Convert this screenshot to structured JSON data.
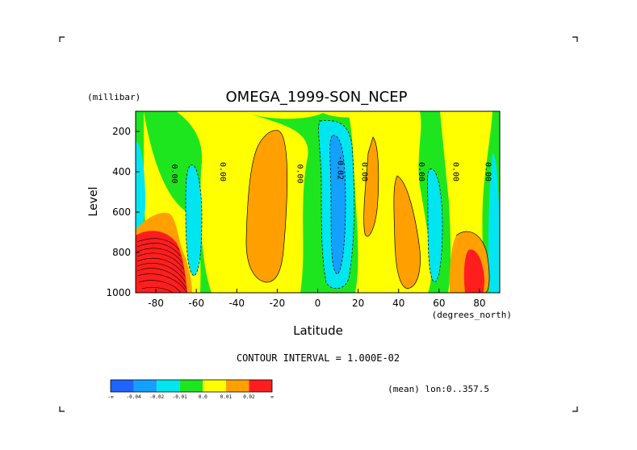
{
  "chart_data": {
    "type": "heatmap",
    "title": "OMEGA_1999-SON_NCEP",
    "xlabel": "Latitude",
    "x_units": "(degrees_north)",
    "ylabel": "Level",
    "y_units": "(millibar)",
    "xlim": [
      -90,
      90
    ],
    "ylim": [
      1000,
      100
    ],
    "x_ticks": [
      "-80",
      "-60",
      "-40",
      "-20",
      "0",
      "20",
      "40",
      "60",
      "80"
    ],
    "y_ticks": [
      "200",
      "400",
      "600",
      "800",
      "1000"
    ],
    "contour_interval_text": "CONTOUR INTERVAL = 1.000E-02",
    "footnote": "(mean) lon:0..357.5",
    "contour_labels": [
      {
        "text": "0.00",
        "x": -72,
        "y": 410
      },
      {
        "text": "0.00",
        "x": -48,
        "y": 400
      },
      {
        "text": "0.00",
        "x": -10,
        "y": 410
      },
      {
        "text": "-0.02",
        "x": 10,
        "y": 380
      },
      {
        "text": "0.00",
        "x": 22,
        "y": 400
      },
      {
        "text": "0.00",
        "x": 50,
        "y": 400
      },
      {
        "text": "0.00",
        "x": 67,
        "y": 400
      },
      {
        "text": "0.00",
        "x": 83,
        "y": 400
      }
    ],
    "colorbar": {
      "colors": [
        "#1e64ff",
        "#14a0ff",
        "#00e6f0",
        "#1ee61e",
        "#ffff00",
        "#ffa000",
        "#ff1e1e"
      ],
      "labels": [
        "-∞",
        "-0.04",
        "-0.02",
        "-0.01",
        "0.0",
        "0.01",
        "0.02",
        "∞"
      ]
    },
    "regions": [
      {
        "level": "green",
        "description": "background, near zero (-0.01 to 0)"
      },
      {
        "level": "yellow",
        "lat_range": [
          -85,
          -45
        ],
        "description": "weak ascent/descent bands 0.0-0.01"
      },
      {
        "level": "orange",
        "lat_range": [
          -34,
          -13
        ],
        "p_range": [
          200,
          900
        ],
        "description": "0.01-0.02"
      },
      {
        "level": "blue",
        "lat_range": [
          8,
          15
        ],
        "p_range": [
          150,
          950
        ],
        "description": "-0.04 to -0.02"
      },
      {
        "level": "orange",
        "lat_range": [
          37,
          45
        ],
        "p_range": [
          380,
          970
        ],
        "description": "0.01-0.02"
      },
      {
        "level": "red",
        "lat_range": [
          -90,
          -62
        ],
        "p_range": [
          700,
          1000
        ],
        "description": "> 0.02 (dense contours)"
      },
      {
        "level": "red",
        "lat_range": [
          69,
          85
        ],
        "p_range": [
          800,
          1000
        ],
        "description": "> 0.02"
      }
    ]
  }
}
